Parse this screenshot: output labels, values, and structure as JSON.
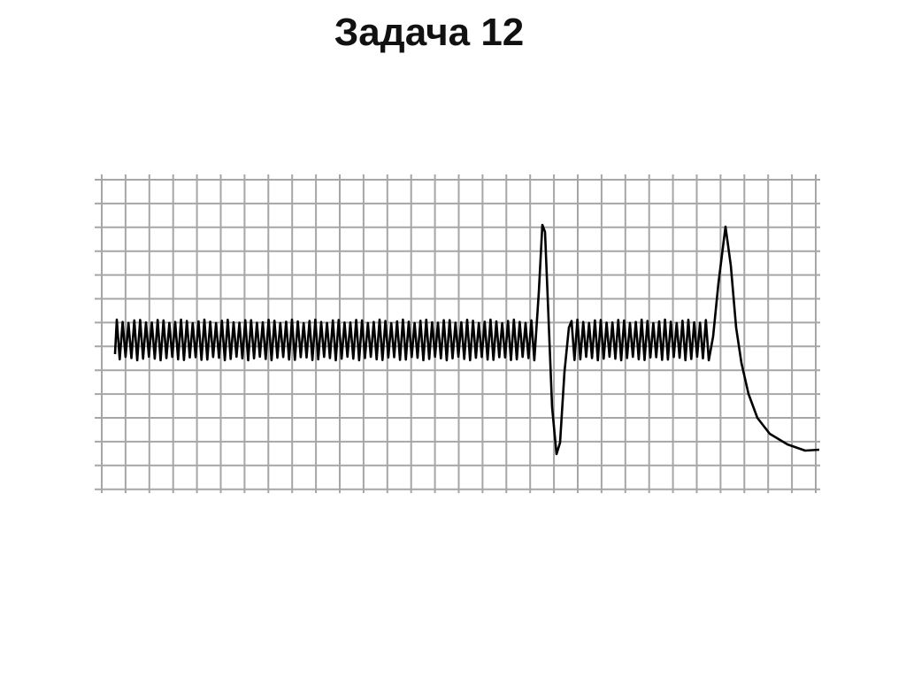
{
  "slide": {
    "title": "Задача 12"
  },
  "colors": {
    "grid": "#a6a6a6",
    "trace": "#000000",
    "background": "#ffffff"
  }
}
